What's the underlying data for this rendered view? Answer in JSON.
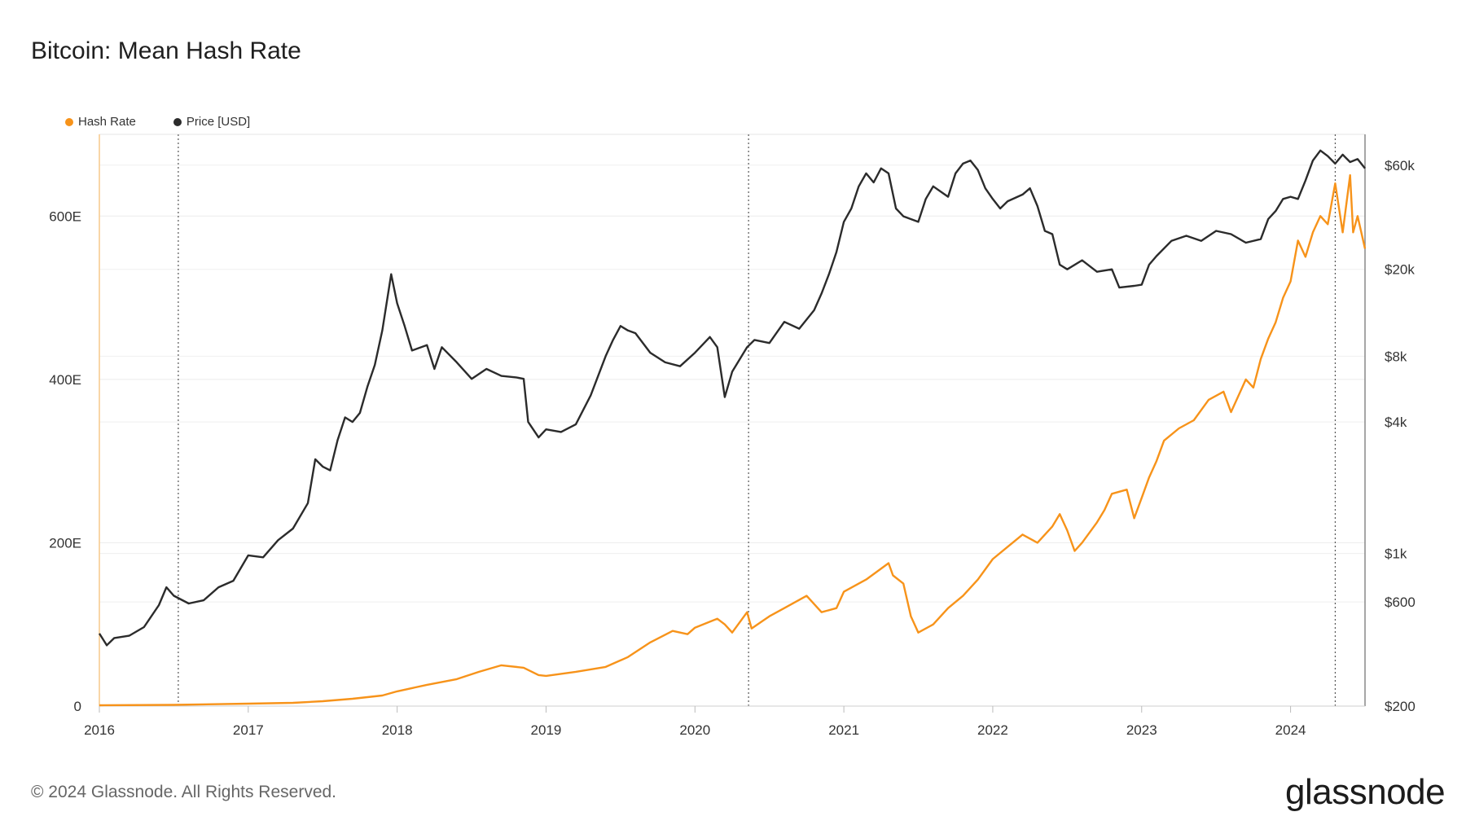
{
  "title": "Bitcoin: Mean Hash Rate",
  "legend": [
    {
      "label": "Hash Rate",
      "color": "#f7931a"
    },
    {
      "label": "Price [USD]",
      "color": "#2b2b2b"
    }
  ],
  "footer": {
    "copyright": "© 2024 Glassnode. All Rights Reserved.",
    "logo": "glassnode"
  },
  "chart_data": {
    "type": "line",
    "title": "Bitcoin: Mean Hash Rate",
    "x_range": [
      2016.0,
      2024.5
    ],
    "x_ticks": [
      {
        "value": 2016,
        "label": "2016"
      },
      {
        "value": 2017,
        "label": "2017"
      },
      {
        "value": 2018,
        "label": "2018"
      },
      {
        "value": 2019,
        "label": "2019"
      },
      {
        "value": 2020,
        "label": "2020"
      },
      {
        "value": 2021,
        "label": "2021"
      },
      {
        "value": 2022,
        "label": "2022"
      },
      {
        "value": 2023,
        "label": "2023"
      },
      {
        "value": 2024,
        "label": "2024"
      }
    ],
    "left_axis": {
      "scale": "linear",
      "range": [
        0,
        700
      ],
      "unit": "E",
      "ticks": [
        {
          "value": 0,
          "label": "0"
        },
        {
          "value": 200,
          "label": "200E"
        },
        {
          "value": 400,
          "label": "400E"
        },
        {
          "value": 600,
          "label": "600E"
        }
      ]
    },
    "right_axis": {
      "scale": "log",
      "range": [
        200,
        83000
      ],
      "ticks": [
        {
          "value": 200,
          "label": "$200"
        },
        {
          "value": 600,
          "label": "$600"
        },
        {
          "value": 1000,
          "label": "$1k"
        },
        {
          "value": 4000,
          "label": "$4k"
        },
        {
          "value": 8000,
          "label": "$8k"
        },
        {
          "value": 20000,
          "label": "$20k"
        },
        {
          "value": 60000,
          "label": "$60k"
        }
      ]
    },
    "halving_markers": [
      2016.53,
      2020.36,
      2024.3
    ],
    "series": [
      {
        "name": "Hash Rate",
        "axis": "left",
        "color": "#f7931a",
        "points": [
          [
            2016.0,
            1
          ],
          [
            2016.5,
            1.5
          ],
          [
            2017.0,
            3
          ],
          [
            2017.3,
            4
          ],
          [
            2017.5,
            6
          ],
          [
            2017.7,
            9
          ],
          [
            2017.9,
            13
          ],
          [
            2018.0,
            18
          ],
          [
            2018.2,
            26
          ],
          [
            2018.4,
            33
          ],
          [
            2018.55,
            42
          ],
          [
            2018.7,
            50
          ],
          [
            2018.85,
            47
          ],
          [
            2018.95,
            38
          ],
          [
            2019.0,
            37
          ],
          [
            2019.2,
            42
          ],
          [
            2019.4,
            48
          ],
          [
            2019.55,
            60
          ],
          [
            2019.7,
            78
          ],
          [
            2019.85,
            92
          ],
          [
            2019.95,
            88
          ],
          [
            2020.0,
            96
          ],
          [
            2020.15,
            107
          ],
          [
            2020.2,
            100
          ],
          [
            2020.25,
            90
          ],
          [
            2020.35,
            115
          ],
          [
            2020.38,
            95
          ],
          [
            2020.5,
            110
          ],
          [
            2020.6,
            120
          ],
          [
            2020.75,
            135
          ],
          [
            2020.85,
            115
          ],
          [
            2020.95,
            120
          ],
          [
            2021.0,
            140
          ],
          [
            2021.15,
            155
          ],
          [
            2021.3,
            175
          ],
          [
            2021.33,
            160
          ],
          [
            2021.4,
            150
          ],
          [
            2021.45,
            110
          ],
          [
            2021.5,
            90
          ],
          [
            2021.6,
            100
          ],
          [
            2021.7,
            120
          ],
          [
            2021.8,
            135
          ],
          [
            2021.9,
            155
          ],
          [
            2022.0,
            180
          ],
          [
            2022.1,
            195
          ],
          [
            2022.2,
            210
          ],
          [
            2022.3,
            200
          ],
          [
            2022.4,
            220
          ],
          [
            2022.45,
            235
          ],
          [
            2022.5,
            215
          ],
          [
            2022.55,
            190
          ],
          [
            2022.6,
            200
          ],
          [
            2022.7,
            225
          ],
          [
            2022.75,
            240
          ],
          [
            2022.8,
            260
          ],
          [
            2022.9,
            265
          ],
          [
            2022.95,
            230
          ],
          [
            2023.0,
            255
          ],
          [
            2023.05,
            280
          ],
          [
            2023.1,
            300
          ],
          [
            2023.15,
            325
          ],
          [
            2023.25,
            340
          ],
          [
            2023.35,
            350
          ],
          [
            2023.45,
            375
          ],
          [
            2023.55,
            385
          ],
          [
            2023.6,
            360
          ],
          [
            2023.7,
            400
          ],
          [
            2023.75,
            390
          ],
          [
            2023.8,
            425
          ],
          [
            2023.85,
            450
          ],
          [
            2023.9,
            470
          ],
          [
            2023.95,
            500
          ],
          [
            2024.0,
            520
          ],
          [
            2024.05,
            570
          ],
          [
            2024.1,
            550
          ],
          [
            2024.15,
            580
          ],
          [
            2024.2,
            600
          ],
          [
            2024.25,
            590
          ],
          [
            2024.3,
            640
          ],
          [
            2024.35,
            580
          ],
          [
            2024.4,
            650
          ],
          [
            2024.42,
            580
          ],
          [
            2024.45,
            600
          ],
          [
            2024.5,
            560
          ]
        ]
      },
      {
        "name": "Price [USD]",
        "axis": "right",
        "color": "#2b2b2b",
        "points": [
          [
            2016.0,
            430
          ],
          [
            2016.05,
            380
          ],
          [
            2016.1,
            410
          ],
          [
            2016.2,
            420
          ],
          [
            2016.3,
            460
          ],
          [
            2016.4,
            580
          ],
          [
            2016.45,
            700
          ],
          [
            2016.5,
            640
          ],
          [
            2016.6,
            590
          ],
          [
            2016.7,
            610
          ],
          [
            2016.8,
            700
          ],
          [
            2016.9,
            750
          ],
          [
            2017.0,
            980
          ],
          [
            2017.1,
            960
          ],
          [
            2017.2,
            1150
          ],
          [
            2017.3,
            1300
          ],
          [
            2017.4,
            1700
          ],
          [
            2017.45,
            2700
          ],
          [
            2017.5,
            2500
          ],
          [
            2017.55,
            2400
          ],
          [
            2017.6,
            3300
          ],
          [
            2017.65,
            4200
          ],
          [
            2017.7,
            4000
          ],
          [
            2017.75,
            4400
          ],
          [
            2017.8,
            5800
          ],
          [
            2017.85,
            7300
          ],
          [
            2017.9,
            10500
          ],
          [
            2017.96,
            19000
          ],
          [
            2018.0,
            14000
          ],
          [
            2018.05,
            11000
          ],
          [
            2018.1,
            8500
          ],
          [
            2018.2,
            9000
          ],
          [
            2018.25,
            7000
          ],
          [
            2018.3,
            8800
          ],
          [
            2018.4,
            7500
          ],
          [
            2018.5,
            6300
          ],
          [
            2018.6,
            7000
          ],
          [
            2018.7,
            6500
          ],
          [
            2018.8,
            6400
          ],
          [
            2018.85,
            6300
          ],
          [
            2018.88,
            4000
          ],
          [
            2018.95,
            3400
          ],
          [
            2019.0,
            3700
          ],
          [
            2019.1,
            3600
          ],
          [
            2019.2,
            3900
          ],
          [
            2019.3,
            5300
          ],
          [
            2019.4,
            8000
          ],
          [
            2019.45,
            9500
          ],
          [
            2019.5,
            11000
          ],
          [
            2019.55,
            10500
          ],
          [
            2019.6,
            10200
          ],
          [
            2019.7,
            8300
          ],
          [
            2019.8,
            7500
          ],
          [
            2019.9,
            7200
          ],
          [
            2020.0,
            8300
          ],
          [
            2020.1,
            9800
          ],
          [
            2020.15,
            8800
          ],
          [
            2020.2,
            5200
          ],
          [
            2020.25,
            6800
          ],
          [
            2020.35,
            8800
          ],
          [
            2020.4,
            9500
          ],
          [
            2020.5,
            9200
          ],
          [
            2020.6,
            11500
          ],
          [
            2020.7,
            10700
          ],
          [
            2020.8,
            13000
          ],
          [
            2020.85,
            15500
          ],
          [
            2020.9,
            19000
          ],
          [
            2020.95,
            24000
          ],
          [
            2021.0,
            33000
          ],
          [
            2021.05,
            38000
          ],
          [
            2021.1,
            48000
          ],
          [
            2021.15,
            55000
          ],
          [
            2021.2,
            50000
          ],
          [
            2021.25,
            58000
          ],
          [
            2021.3,
            55000
          ],
          [
            2021.35,
            38000
          ],
          [
            2021.4,
            35000
          ],
          [
            2021.5,
            33000
          ],
          [
            2021.55,
            42000
          ],
          [
            2021.6,
            48000
          ],
          [
            2021.7,
            43000
          ],
          [
            2021.75,
            55000
          ],
          [
            2021.8,
            61000
          ],
          [
            2021.85,
            63000
          ],
          [
            2021.9,
            57000
          ],
          [
            2021.95,
            47000
          ],
          [
            2022.0,
            42000
          ],
          [
            2022.05,
            38000
          ],
          [
            2022.1,
            41000
          ],
          [
            2022.2,
            44000
          ],
          [
            2022.25,
            47000
          ],
          [
            2022.3,
            39000
          ],
          [
            2022.35,
            30000
          ],
          [
            2022.4,
            29000
          ],
          [
            2022.45,
            21000
          ],
          [
            2022.5,
            20000
          ],
          [
            2022.6,
            22000
          ],
          [
            2022.7,
            19500
          ],
          [
            2022.8,
            20000
          ],
          [
            2022.85,
            16500
          ],
          [
            2022.95,
            16800
          ],
          [
            2023.0,
            17000
          ],
          [
            2023.05,
            21000
          ],
          [
            2023.1,
            23000
          ],
          [
            2023.2,
            27000
          ],
          [
            2023.3,
            28500
          ],
          [
            2023.4,
            27000
          ],
          [
            2023.5,
            30000
          ],
          [
            2023.6,
            29000
          ],
          [
            2023.7,
            26500
          ],
          [
            2023.8,
            27500
          ],
          [
            2023.85,
            34000
          ],
          [
            2023.9,
            37000
          ],
          [
            2023.95,
            42000
          ],
          [
            2024.0,
            43000
          ],
          [
            2024.05,
            42000
          ],
          [
            2024.1,
            51000
          ],
          [
            2024.15,
            63000
          ],
          [
            2024.2,
            70000
          ],
          [
            2024.25,
            66000
          ],
          [
            2024.3,
            61000
          ],
          [
            2024.35,
            67000
          ],
          [
            2024.4,
            62000
          ],
          [
            2024.45,
            64000
          ],
          [
            2024.5,
            58000
          ]
        ]
      }
    ]
  }
}
